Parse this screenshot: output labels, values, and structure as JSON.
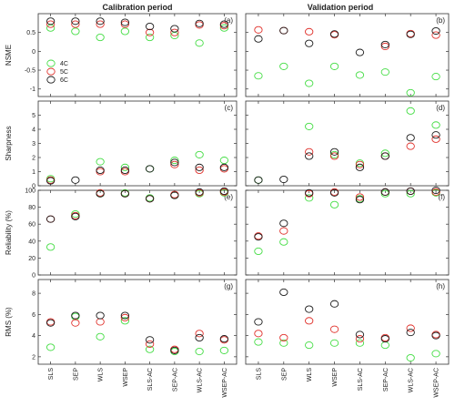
{
  "column_titles": [
    "Calibration period",
    "Validation period"
  ],
  "chart_data": {
    "type": "scatter",
    "categories": [
      "SLS",
      "SEP",
      "WLS",
      "WSEP",
      "SLS-AC",
      "SEP-AC",
      "WLS-AC",
      "WSEP-AC"
    ],
    "legend": {
      "placement": "inside-left",
      "entries": [
        "4C",
        "5C",
        "6C"
      ]
    },
    "colors": {
      "4C": "#44dd44",
      "5C": "#e0302a",
      "6C": "#1a1a1a"
    },
    "grid": false,
    "rows": [
      {
        "ylabel": "NSME",
        "ylim": [
          -1.2,
          1.0
        ],
        "yticks": [
          -1,
          -0.5,
          0,
          0.5
        ],
        "yticklabels": [
          "-1",
          "-0.5",
          "0",
          "0.5"
        ],
        "panels": [
          {
            "label": "(a)",
            "series": [
              {
                "name": "4C",
                "values": [
                  0.62,
                  0.53,
                  0.37,
                  0.53,
                  0.37,
                  0.42,
                  0.22,
                  0.62
                ]
              },
              {
                "name": "5C",
                "values": [
                  0.72,
                  0.72,
                  0.72,
                  0.72,
                  0.5,
                  0.5,
                  0.7,
                  0.68
                ]
              },
              {
                "name": "6C",
                "values": [
                  0.8,
                  0.8,
                  0.8,
                  0.77,
                  0.66,
                  0.6,
                  0.74,
                  0.72
                ]
              }
            ]
          },
          {
            "label": "(b)",
            "series": [
              {
                "name": "4C",
                "values": [
                  -0.65,
                  -0.4,
                  -0.85,
                  -0.4,
                  -0.63,
                  -0.55,
                  -1.1,
                  -0.67
                ]
              },
              {
                "name": "5C",
                "values": [
                  0.57,
                  0.55,
                  0.52,
                  0.44,
                  null,
                  0.13,
                  0.47,
                  0.43
                ]
              },
              {
                "name": "6C",
                "values": [
                  0.33,
                  0.55,
                  0.21,
                  0.46,
                  -0.03,
                  0.18,
                  0.45,
                  0.54
                ]
              }
            ]
          }
        ]
      },
      {
        "ylabel": "Sharpness",
        "ylim": [
          0,
          6
        ],
        "yticks": [
          0,
          1,
          2,
          3,
          4,
          5
        ],
        "yticklabels": [
          "0",
          "1",
          "2",
          "3",
          "4",
          "5"
        ],
        "panels": [
          {
            "label": "(c)",
            "series": [
              {
                "name": "4C",
                "values": [
                  0.5,
                  null,
                  1.7,
                  1.3,
                  1.2,
                  1.8,
                  2.2,
                  1.8
                ]
              },
              {
                "name": "5C",
                "values": [
                  0.4,
                  null,
                  1.0,
                  1.0,
                  null,
                  1.5,
                  1.1,
                  1.2
                ]
              },
              {
                "name": "6C",
                "values": [
                  0.35,
                  0.4,
                  1.1,
                  1.1,
                  1.2,
                  1.65,
                  1.3,
                  1.3
                ]
              }
            ]
          },
          {
            "label": "(d)",
            "series": [
              {
                "name": "4C",
                "values": [
                  0.4,
                  null,
                  4.2,
                  2.2,
                  1.6,
                  2.3,
                  5.3,
                  4.3
                ]
              },
              {
                "name": "5C",
                "values": [
                  null,
                  null,
                  2.4,
                  2.1,
                  1.5,
                  2.1,
                  2.8,
                  3.3
                ]
              },
              {
                "name": "6C",
                "values": [
                  0.4,
                  0.45,
                  2.1,
                  2.4,
                  1.3,
                  2.1,
                  3.4,
                  3.6
                ]
              }
            ]
          }
        ]
      },
      {
        "ylabel": "Reliability (%)",
        "ylim": [
          0,
          100
        ],
        "yticks": [
          0,
          20,
          40,
          60,
          80,
          100
        ],
        "yticklabels": [
          "0",
          "20",
          "40",
          "60",
          "80",
          "100"
        ],
        "panels": [
          {
            "label": "(e)",
            "series": [
              {
                "name": "4C",
                "values": [
                  33,
                  72,
                  96,
                  97,
                  91,
                  94,
                  96,
                  97
                ]
              },
              {
                "name": "5C",
                "values": [
                  66,
                  70,
                  97,
                  96,
                  90,
                  95,
                  97,
                  98
                ]
              },
              {
                "name": "6C",
                "values": [
                  66,
                  69,
                  96,
                  96,
                  90,
                  94,
                  98,
                  99
                ]
              }
            ]
          },
          {
            "label": "(f)",
            "series": [
              {
                "name": "4C",
                "values": [
                  28,
                  39,
                  91,
                  83,
                  90,
                  96,
                  96,
                  97
                ]
              },
              {
                "name": "5C",
                "values": [
                  46,
                  52,
                  96,
                  98,
                  92,
                  98,
                  99,
                  98
                ]
              },
              {
                "name": "6C",
                "values": [
                  45,
                  61,
                  97,
                  97,
                  89,
                  98,
                  99,
                  100
                ]
              }
            ]
          }
        ]
      },
      {
        "ylabel": "RMS (%)",
        "ylim": [
          1.3,
          9.3
        ],
        "yticks": [
          2,
          4,
          6,
          8
        ],
        "yticklabels": [
          "2",
          "4",
          "6",
          "8"
        ],
        "panels": [
          {
            "label": "(g)",
            "series": [
              {
                "name": "4C",
                "values": [
                  2.9,
                  5.8,
                  3.9,
                  5.4,
                  2.7,
                  2.5,
                  2.5,
                  2.6
                ]
              },
              {
                "name": "5C",
                "values": [
                  5.3,
                  5.2,
                  5.3,
                  5.7,
                  3.2,
                  2.7,
                  4.2,
                  3.6
                ]
              },
              {
                "name": "6C",
                "values": [
                  5.2,
                  5.9,
                  5.9,
                  5.9,
                  3.6,
                  2.6,
                  3.8,
                  3.7
                ]
              }
            ]
          },
          {
            "label": "(h)",
            "series": [
              {
                "name": "4C",
                "values": [
                  3.4,
                  3.3,
                  3.1,
                  3.3,
                  3.3,
                  3.1,
                  1.9,
                  2.3
                ]
              },
              {
                "name": "5C",
                "values": [
                  4.2,
                  3.8,
                  5.4,
                  4.6,
                  3.7,
                  3.8,
                  4.7,
                  4.1
                ]
              },
              {
                "name": "6C",
                "values": [
                  5.3,
                  8.1,
                  6.5,
                  7.0,
                  4.1,
                  3.7,
                  4.3,
                  4.0
                ]
              }
            ]
          }
        ]
      }
    ]
  }
}
